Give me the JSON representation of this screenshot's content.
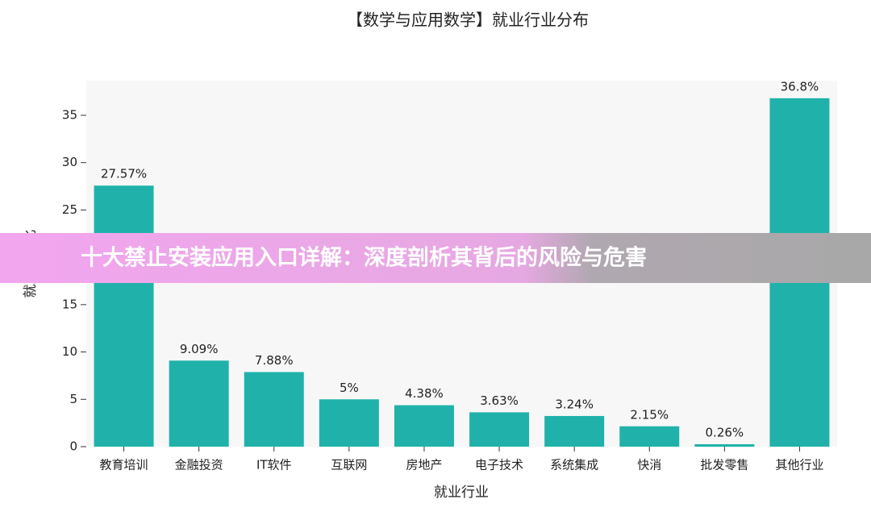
{
  "chart_data": {
    "type": "bar",
    "title": "【数学与应用数学】就业行业分布",
    "x_label": "就业行业",
    "y_label": "就业百分比",
    "categories": [
      "教育培训",
      "金融投资",
      "IT软件",
      "互联网",
      "房地产",
      "电子技术",
      "系统集成",
      "快消",
      "批发零售",
      "其他行业"
    ],
    "values": [
      27.57,
      9.09,
      7.88,
      5,
      4.38,
      3.63,
      3.24,
      2.15,
      0.26,
      36.8
    ],
    "value_labels": [
      "27.57%",
      "9.09%",
      "7.88%",
      "5%",
      "4.38%",
      "3.63%",
      "3.24%",
      "2.15%",
      "0.26%",
      "36.8%"
    ],
    "color": "#20b2aa",
    "ylim": [
      0,
      38.66
    ],
    "yticks": [
      0,
      5,
      10,
      15,
      20,
      25,
      30,
      35
    ],
    "grid": false
  },
  "banner": {
    "text": "十大禁止安装应用入口详解：深度剖析其背后的风险与危害"
  }
}
